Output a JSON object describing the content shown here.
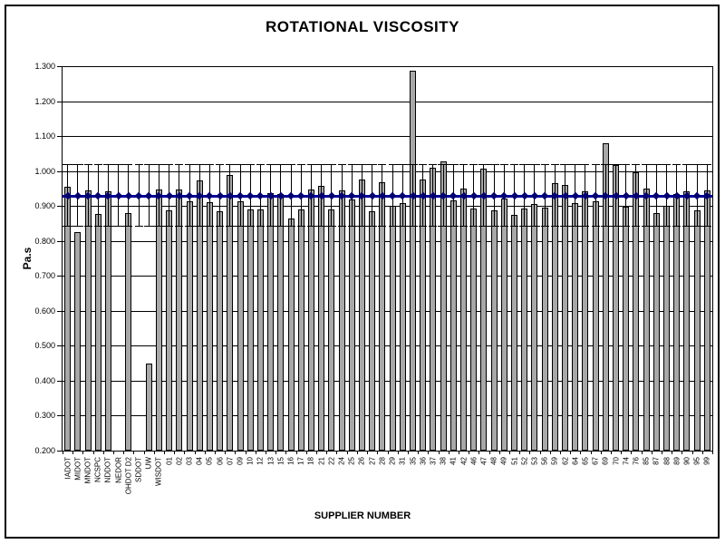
{
  "title": "ROTATIONAL VISCOSITY",
  "chart_data": {
    "type": "bar",
    "title": "ROTATIONAL VISCOSITY",
    "xlabel": "SUPPLIER NUMBER",
    "ylabel": "Pa.s",
    "ylim": [
      0.2,
      1.3
    ],
    "ytick_step": 0.1,
    "ytick_labels": [
      "0.200",
      "0.300",
      "0.400",
      "0.500",
      "0.600",
      "0.700",
      "0.800",
      "0.900",
      "1.000",
      "1.100",
      "1.200",
      "1.300"
    ],
    "grid": true,
    "legend": "none",
    "bar_color": "#a8a8a8",
    "mean_line": {
      "value": 0.929,
      "color": "#0000a0",
      "marker": "diamond",
      "marker_color": "#000070"
    },
    "upper_limit_line": {
      "value": 1.02,
      "style": "dashed",
      "color": "#000000"
    },
    "lower_limit_line": {
      "value": 0.843,
      "style": "dashed",
      "color": "#000000"
    },
    "error_bars": {
      "upper": 1.02,
      "lower": 0.843,
      "on_every_category": true
    },
    "categories": [
      "IADOT",
      "MIDOT",
      "MNDOT",
      "NCSPC",
      "NDDOT",
      "NEDOR",
      "OHDOT D2",
      "SDDOT",
      "UW",
      "WISDOT",
      "01",
      "02",
      "03",
      "04",
      "05",
      "06",
      "07",
      "09",
      "10",
      "12",
      "13",
      "15",
      "16",
      "17",
      "18",
      "21",
      "22",
      "24",
      "25",
      "26",
      "27",
      "28",
      "29",
      "31",
      "35",
      "36",
      "37",
      "38",
      "41",
      "42",
      "46",
      "47",
      "48",
      "49",
      "51",
      "52",
      "53",
      "56",
      "59",
      "62",
      "64",
      "65",
      "67",
      "69",
      "70",
      "74",
      "76",
      "85",
      "87",
      "88",
      "89",
      "90",
      "95",
      "99"
    ],
    "values": [
      0.955,
      0.825,
      0.945,
      0.877,
      0.943,
      null,
      0.88,
      null,
      0.45,
      0.948,
      0.888,
      0.947,
      0.914,
      0.972,
      0.912,
      0.885,
      0.988,
      0.913,
      0.89,
      0.89,
      0.936,
      0.933,
      0.865,
      0.89,
      0.947,
      0.957,
      0.89,
      0.945,
      0.918,
      0.975,
      0.884,
      0.968,
      0.901,
      0.908,
      1.288,
      0.975,
      1.01,
      1.027,
      0.917,
      0.95,
      0.893,
      1.008,
      0.887,
      0.922,
      0.875,
      0.893,
      0.905,
      0.894,
      0.965,
      0.959,
      0.908,
      0.943,
      0.914,
      1.079,
      1.016,
      0.899,
      0.996,
      0.951,
      0.88,
      0.901,
      0.935,
      0.942,
      0.888,
      0.945
    ]
  }
}
